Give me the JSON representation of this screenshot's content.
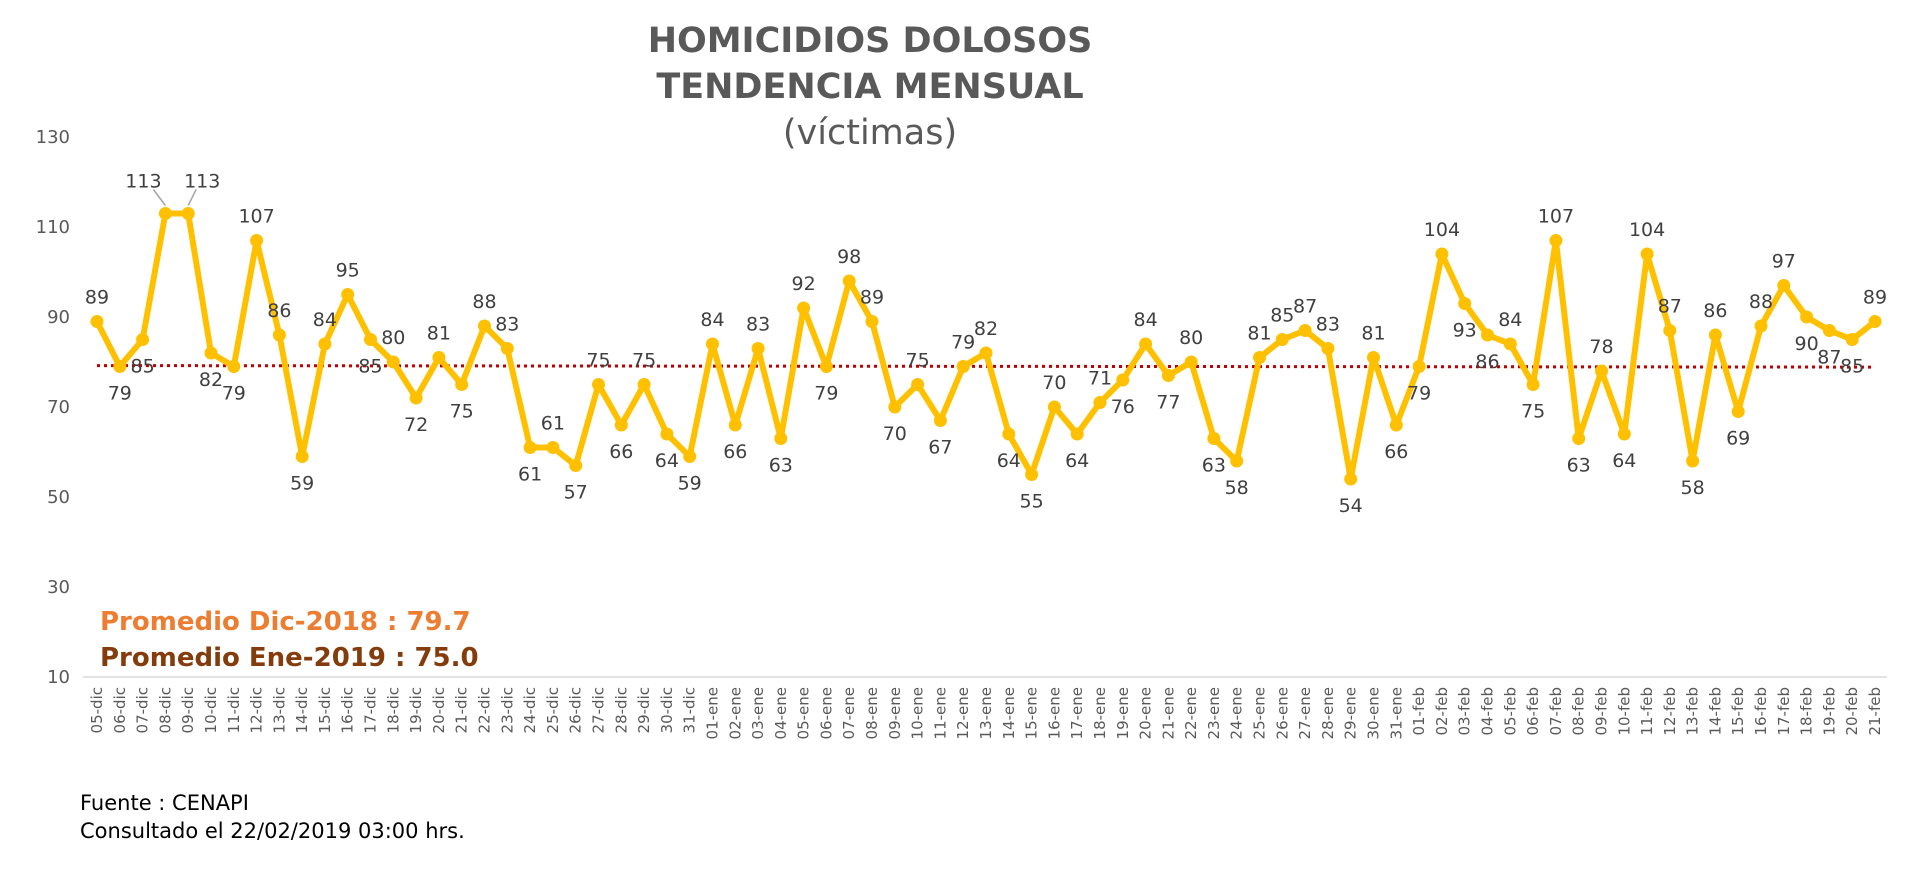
{
  "chart_data": {
    "type": "line",
    "title_line1": "HOMICIDIOS DOLOSOS",
    "title_line2": "TENDENCIA MENSUAL",
    "subtitle": "(víctimas)",
    "ylim": [
      10,
      130
    ],
    "yticks": [
      10,
      30,
      50,
      70,
      90,
      110,
      130
    ],
    "grid": false,
    "categories": [
      "05-dic",
      "06-dic",
      "07-dic",
      "08-dic",
      "09-dic",
      "10-dic",
      "11-dic",
      "12-dic",
      "13-dic",
      "14-dic",
      "15-dic",
      "16-dic",
      "17-dic",
      "18-dic",
      "19-dic",
      "20-dic",
      "21-dic",
      "22-dic",
      "23-dic",
      "24-dic",
      "25-dic",
      "26-dic",
      "27-dic",
      "28-dic",
      "29-dic",
      "30-dic",
      "31-dic",
      "01-ene",
      "02-ene",
      "03-ene",
      "04-ene",
      "05-ene",
      "06-ene",
      "07-ene",
      "08-ene",
      "09-ene",
      "10-ene",
      "11-ene",
      "12-ene",
      "13-ene",
      "14-ene",
      "15-ene",
      "16-ene",
      "17-ene",
      "18-ene",
      "19-ene",
      "20-ene",
      "21-ene",
      "22-ene",
      "23-ene",
      "24-ene",
      "25-ene",
      "26-ene",
      "27-ene",
      "28-ene",
      "29-ene",
      "30-ene",
      "31-ene",
      "01-feb",
      "02-feb",
      "03-feb",
      "04-feb",
      "05-feb",
      "06-feb",
      "07-feb",
      "08-feb",
      "09-feb",
      "10-feb",
      "11-feb",
      "12-feb",
      "13-feb",
      "14-feb",
      "15-feb",
      "16-feb",
      "17-feb",
      "18-feb",
      "19-feb",
      "20-feb",
      "21-feb"
    ],
    "series": [
      {
        "values": [
          89,
          79,
          85,
          113,
          113,
          82,
          79,
          107,
          86,
          59,
          84,
          95,
          85,
          80,
          72,
          81,
          75,
          88,
          83,
          61,
          61,
          57,
          75,
          66,
          75,
          64,
          59,
          84,
          66,
          83,
          63,
          92,
          79,
          98,
          89,
          70,
          75,
          67,
          79,
          82,
          64,
          55,
          70,
          64,
          71,
          76,
          84,
          77,
          80,
          63,
          58,
          81,
          85,
          87,
          83,
          54,
          81,
          66,
          79,
          104,
          93,
          86,
          84,
          75,
          107,
          63,
          78,
          64,
          104,
          87,
          58,
          86,
          69,
          88,
          97,
          90,
          87,
          85,
          89
        ],
        "color": "#FFC000"
      }
    ],
    "average_line": {
      "value": 79.2,
      "color": "#C00000"
    },
    "annotations": [
      {
        "text": "Promedio Dic-2018  : 79.7",
        "color": "#ED7D31"
      },
      {
        "text": "Promedio Ene-2019 : 75.0",
        "color": "#843C0C"
      }
    ]
  },
  "source": {
    "line1": "Fuente : CENAPI",
    "line2": "Consultado el 22/02/2019  03:00 hrs."
  }
}
